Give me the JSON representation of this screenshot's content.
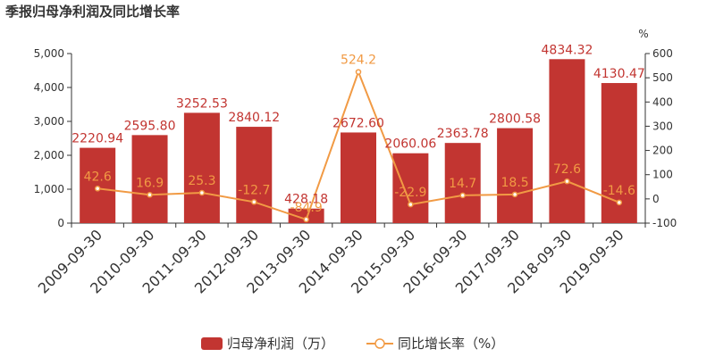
{
  "title": "季报归母净利润及同比增长率",
  "chart_data": {
    "type": "bar+line",
    "categories": [
      "2009-09-30",
      "2010-09-30",
      "2011-09-30",
      "2012-09-30",
      "2013-09-30",
      "2014-09-30",
      "2015-09-30",
      "2016-09-30",
      "2017-09-30",
      "2018-09-30",
      "2019-09-30"
    ],
    "series": [
      {
        "name": "归母净利润（万）",
        "type": "bar",
        "axis": "left",
        "values": [
          2220.94,
          2595.8,
          3252.53,
          2840.12,
          428.18,
          2672.6,
          2060.06,
          2363.78,
          2800.58,
          4834.32,
          4130.47
        ],
        "labels": [
          "2220.94",
          "2595.80",
          "3252.53",
          "2840.12",
          "428.18",
          "2672.60",
          "2060.06",
          "2363.78",
          "2800.58",
          "4834.32",
          "4130.47"
        ],
        "color": "#c23531"
      },
      {
        "name": "同比增长率（%）",
        "type": "line",
        "axis": "right",
        "values": [
          42.6,
          16.9,
          25.3,
          -12.7,
          -84.9,
          524.2,
          -22.9,
          14.7,
          18.5,
          72.6,
          -14.6
        ],
        "labels": [
          "42.6",
          "16.9",
          "25.3",
          "-12.7",
          "-84.9",
          "524.2",
          "-22.9",
          "14.7",
          "18.5",
          "72.6",
          "-14.6"
        ],
        "color": "#f19a44"
      }
    ],
    "y_left": {
      "min": 0,
      "max": 5000,
      "ticks": [
        0,
        1000,
        2000,
        3000,
        4000,
        5000
      ],
      "tick_labels": [
        "0",
        "1,000",
        "2,000",
        "3,000",
        "4,000",
        "5,000"
      ]
    },
    "y_right": {
      "min": -100,
      "max": 600,
      "unit": "%",
      "ticks": [
        -100,
        0,
        100,
        200,
        300,
        400,
        500,
        600
      ],
      "tick_labels": [
        "-100",
        "0",
        "100",
        "200",
        "300",
        "400",
        "500",
        "600"
      ]
    },
    "legend_position": "bottom-center",
    "grid": false
  }
}
